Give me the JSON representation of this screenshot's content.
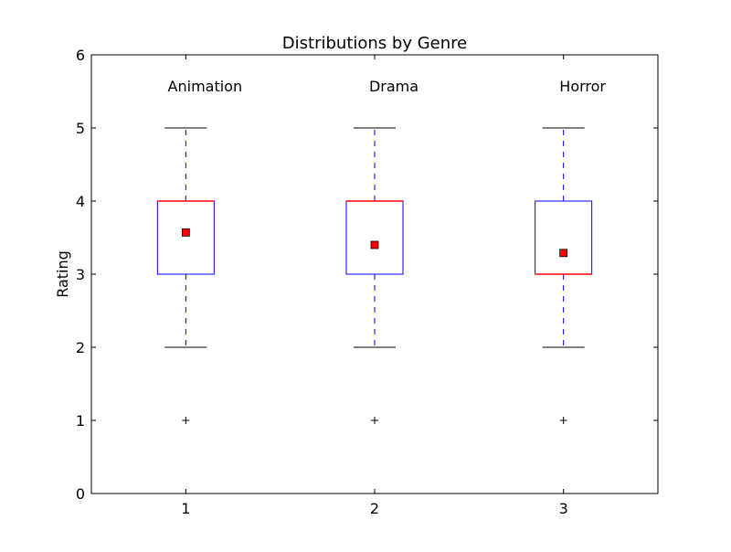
{
  "chart_data": {
    "type": "box",
    "title": "Distributions by Genre",
    "xlabel": "",
    "ylabel": "Rating",
    "ylim": [
      0,
      6
    ],
    "xlim": [
      0.5,
      3.5
    ],
    "yticks": [
      0,
      1,
      2,
      3,
      4,
      5,
      6
    ],
    "xticks": [
      1,
      2,
      3
    ],
    "grid": false,
    "colors": {
      "box": "#0000ff",
      "whisker": "#0000ff",
      "cap": "#000000",
      "median": "#ff0000",
      "mean_marker_fill": "#ff0000",
      "mean_marker_edge": "#000000",
      "flier": "#000000"
    },
    "series": [
      {
        "x": 1,
        "annotation": "Animation",
        "q1": 3,
        "median": 4,
        "q3": 4,
        "whisker_low": 2,
        "whisker_high": 5,
        "mean": 3.57,
        "outliers": [
          1
        ]
      },
      {
        "x": 2,
        "annotation": "Drama",
        "q1": 3,
        "median": 4,
        "q3": 4,
        "whisker_low": 2,
        "whisker_high": 5,
        "mean": 3.4,
        "outliers": [
          1
        ]
      },
      {
        "x": 3,
        "annotation": "Horror",
        "q1": 3,
        "median": 3,
        "q3": 4,
        "whisker_low": 2,
        "whisker_high": 5,
        "mean": 3.29,
        "outliers": [
          1
        ]
      }
    ]
  }
}
